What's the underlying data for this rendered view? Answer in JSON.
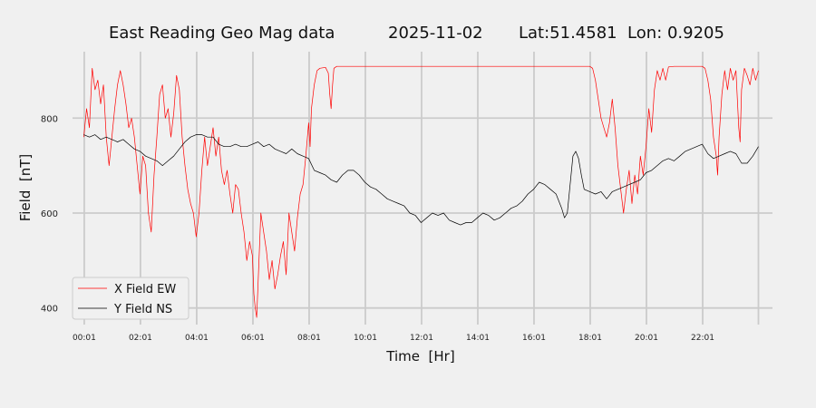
{
  "chart_data": {
    "type": "line",
    "title": {
      "name": "East Reading Geo Mag data",
      "date": "2025-11-02",
      "location": "Lat:51.4581  Lon: 0.9205"
    },
    "xlabel": "Time  [Hr]",
    "ylabel": "Field  [nT]",
    "x_unit": "hours",
    "xlim": [
      -0.4,
      24.5
    ],
    "ylim": [
      365,
      940
    ],
    "x_ticks": [
      {
        "value": 0.0167,
        "label": "00:01"
      },
      {
        "value": 2.0167,
        "label": "02:01"
      },
      {
        "value": 4.0167,
        "label": "04:01"
      },
      {
        "value": 6.0167,
        "label": "06:01"
      },
      {
        "value": 8.0167,
        "label": "08:01"
      },
      {
        "value": 10.0167,
        "label": "10:01"
      },
      {
        "value": 12.0167,
        "label": "12:01"
      },
      {
        "value": 14.0167,
        "label": "14:01"
      },
      {
        "value": 16.0167,
        "label": "16:01"
      },
      {
        "value": 18.0167,
        "label": "18:01"
      },
      {
        "value": 20.0167,
        "label": "20:01"
      },
      {
        "value": 22.0167,
        "label": "22:01"
      },
      {
        "value": 24.0,
        "label": ""
      }
    ],
    "y_ticks": [
      400,
      600,
      800
    ],
    "grid": true,
    "legend": "bottom-left",
    "series": [
      {
        "name": "X Field EW",
        "color": "#ff0000",
        "points": [
          [
            0.0,
            760
          ],
          [
            0.1,
            820
          ],
          [
            0.2,
            780
          ],
          [
            0.3,
            905
          ],
          [
            0.4,
            860
          ],
          [
            0.5,
            880
          ],
          [
            0.6,
            830
          ],
          [
            0.7,
            870
          ],
          [
            0.8,
            760
          ],
          [
            0.9,
            700
          ],
          [
            1.0,
            760
          ],
          [
            1.1,
            820
          ],
          [
            1.2,
            870
          ],
          [
            1.3,
            900
          ],
          [
            1.4,
            870
          ],
          [
            1.5,
            830
          ],
          [
            1.6,
            780
          ],
          [
            1.7,
            800
          ],
          [
            1.8,
            760
          ],
          [
            1.9,
            700
          ],
          [
            2.0,
            640
          ],
          [
            2.1,
            720
          ],
          [
            2.2,
            700
          ],
          [
            2.3,
            600
          ],
          [
            2.4,
            560
          ],
          [
            2.5,
            680
          ],
          [
            2.6,
            760
          ],
          [
            2.7,
            850
          ],
          [
            2.8,
            870
          ],
          [
            2.9,
            800
          ],
          [
            3.0,
            820
          ],
          [
            3.1,
            760
          ],
          [
            3.2,
            810
          ],
          [
            3.3,
            890
          ],
          [
            3.4,
            860
          ],
          [
            3.5,
            760
          ],
          [
            3.6,
            700
          ],
          [
            3.7,
            650
          ],
          [
            3.8,
            620
          ],
          [
            3.9,
            600
          ],
          [
            4.0,
            550
          ],
          [
            4.1,
            600
          ],
          [
            4.2,
            690
          ],
          [
            4.3,
            760
          ],
          [
            4.4,
            700
          ],
          [
            4.5,
            740
          ],
          [
            4.6,
            780
          ],
          [
            4.7,
            720
          ],
          [
            4.8,
            760
          ],
          [
            4.9,
            690
          ],
          [
            5.0,
            660
          ],
          [
            5.1,
            690
          ],
          [
            5.2,
            640
          ],
          [
            5.3,
            600
          ],
          [
            5.4,
            660
          ],
          [
            5.5,
            650
          ],
          [
            5.6,
            600
          ],
          [
            5.7,
            560
          ],
          [
            5.8,
            500
          ],
          [
            5.9,
            540
          ],
          [
            6.0,
            510
          ],
          [
            6.05,
            430
          ],
          [
            6.1,
            400
          ],
          [
            6.15,
            380
          ],
          [
            6.2,
            450
          ],
          [
            6.3,
            600
          ],
          [
            6.4,
            560
          ],
          [
            6.5,
            520
          ],
          [
            6.6,
            460
          ],
          [
            6.7,
            500
          ],
          [
            6.8,
            440
          ],
          [
            6.9,
            470
          ],
          [
            7.0,
            510
          ],
          [
            7.1,
            540
          ],
          [
            7.2,
            470
          ],
          [
            7.3,
            600
          ],
          [
            7.4,
            560
          ],
          [
            7.5,
            520
          ],
          [
            7.6,
            590
          ],
          [
            7.7,
            640
          ],
          [
            7.8,
            660
          ],
          [
            7.9,
            720
          ],
          [
            8.0,
            790
          ],
          [
            8.05,
            740
          ],
          [
            8.1,
            820
          ],
          [
            8.2,
            870
          ],
          [
            8.3,
            900
          ],
          [
            8.4,
            905
          ],
          [
            8.5,
            906
          ],
          [
            8.6,
            907
          ],
          [
            8.7,
            895
          ],
          [
            8.75,
            850
          ],
          [
            8.8,
            820
          ],
          [
            8.85,
            870
          ],
          [
            8.9,
            905
          ],
          [
            9.0,
            909
          ],
          [
            10.0,
            909
          ],
          [
            11.0,
            909
          ],
          [
            12.0,
            909
          ],
          [
            13.0,
            909
          ],
          [
            14.0,
            909
          ],
          [
            15.0,
            909
          ],
          [
            16.0,
            909
          ],
          [
            17.0,
            909
          ],
          [
            18.0,
            909
          ],
          [
            18.1,
            905
          ],
          [
            18.2,
            880
          ],
          [
            18.3,
            840
          ],
          [
            18.4,
            800
          ],
          [
            18.5,
            780
          ],
          [
            18.6,
            760
          ],
          [
            18.7,
            790
          ],
          [
            18.8,
            840
          ],
          [
            18.9,
            780
          ],
          [
            19.0,
            700
          ],
          [
            19.1,
            650
          ],
          [
            19.2,
            600
          ],
          [
            19.3,
            650
          ],
          [
            19.4,
            690
          ],
          [
            19.5,
            620
          ],
          [
            19.6,
            680
          ],
          [
            19.7,
            640
          ],
          [
            19.8,
            720
          ],
          [
            19.9,
            680
          ],
          [
            20.0,
            740
          ],
          [
            20.1,
            820
          ],
          [
            20.2,
            770
          ],
          [
            20.3,
            860
          ],
          [
            20.4,
            900
          ],
          [
            20.5,
            880
          ],
          [
            20.6,
            905
          ],
          [
            20.7,
            880
          ],
          [
            20.8,
            908
          ],
          [
            21.0,
            909
          ],
          [
            21.5,
            909
          ],
          [
            22.0,
            909
          ],
          [
            22.1,
            905
          ],
          [
            22.2,
            880
          ],
          [
            22.3,
            840
          ],
          [
            22.4,
            760
          ],
          [
            22.5,
            720
          ],
          [
            22.55,
            680
          ],
          [
            22.6,
            760
          ],
          [
            22.7,
            850
          ],
          [
            22.8,
            900
          ],
          [
            22.9,
            860
          ],
          [
            23.0,
            905
          ],
          [
            23.1,
            880
          ],
          [
            23.2,
            900
          ],
          [
            23.3,
            780
          ],
          [
            23.35,
            750
          ],
          [
            23.4,
            860
          ],
          [
            23.5,
            905
          ],
          [
            23.6,
            890
          ],
          [
            23.7,
            870
          ],
          [
            23.8,
            905
          ],
          [
            23.9,
            880
          ],
          [
            24.0,
            900
          ]
        ]
      },
      {
        "name": "Y Field NS",
        "color": "#000000",
        "points": [
          [
            0.0,
            765
          ],
          [
            0.2,
            760
          ],
          [
            0.4,
            765
          ],
          [
            0.6,
            755
          ],
          [
            0.8,
            760
          ],
          [
            1.0,
            755
          ],
          [
            1.2,
            750
          ],
          [
            1.4,
            755
          ],
          [
            1.6,
            745
          ],
          [
            1.8,
            735
          ],
          [
            2.0,
            730
          ],
          [
            2.2,
            720
          ],
          [
            2.4,
            715
          ],
          [
            2.6,
            710
          ],
          [
            2.8,
            700
          ],
          [
            3.0,
            710
          ],
          [
            3.2,
            720
          ],
          [
            3.4,
            735
          ],
          [
            3.6,
            750
          ],
          [
            3.8,
            760
          ],
          [
            4.0,
            765
          ],
          [
            4.2,
            765
          ],
          [
            4.4,
            760
          ],
          [
            4.6,
            760
          ],
          [
            4.8,
            745
          ],
          [
            5.0,
            740
          ],
          [
            5.2,
            740
          ],
          [
            5.4,
            745
          ],
          [
            5.6,
            740
          ],
          [
            5.8,
            740
          ],
          [
            6.0,
            745
          ],
          [
            6.2,
            750
          ],
          [
            6.4,
            740
          ],
          [
            6.6,
            745
          ],
          [
            6.8,
            735
          ],
          [
            7.0,
            730
          ],
          [
            7.2,
            725
          ],
          [
            7.4,
            735
          ],
          [
            7.6,
            725
          ],
          [
            7.8,
            720
          ],
          [
            8.0,
            715
          ],
          [
            8.2,
            690
          ],
          [
            8.4,
            685
          ],
          [
            8.6,
            680
          ],
          [
            8.8,
            670
          ],
          [
            9.0,
            665
          ],
          [
            9.2,
            680
          ],
          [
            9.4,
            690
          ],
          [
            9.6,
            690
          ],
          [
            9.8,
            680
          ],
          [
            10.0,
            665
          ],
          [
            10.2,
            655
          ],
          [
            10.4,
            650
          ],
          [
            10.6,
            640
          ],
          [
            10.8,
            630
          ],
          [
            11.0,
            625
          ],
          [
            11.2,
            620
          ],
          [
            11.4,
            615
          ],
          [
            11.6,
            600
          ],
          [
            11.8,
            595
          ],
          [
            12.0,
            580
          ],
          [
            12.2,
            590
          ],
          [
            12.4,
            600
          ],
          [
            12.6,
            595
          ],
          [
            12.8,
            600
          ],
          [
            13.0,
            585
          ],
          [
            13.2,
            580
          ],
          [
            13.4,
            575
          ],
          [
            13.6,
            580
          ],
          [
            13.8,
            580
          ],
          [
            14.0,
            590
          ],
          [
            14.2,
            600
          ],
          [
            14.4,
            595
          ],
          [
            14.6,
            585
          ],
          [
            14.8,
            590
          ],
          [
            15.0,
            600
          ],
          [
            15.2,
            610
          ],
          [
            15.4,
            615
          ],
          [
            15.6,
            625
          ],
          [
            15.8,
            640
          ],
          [
            16.0,
            650
          ],
          [
            16.2,
            665
          ],
          [
            16.4,
            660
          ],
          [
            16.6,
            650
          ],
          [
            16.8,
            640
          ],
          [
            17.0,
            610
          ],
          [
            17.1,
            590
          ],
          [
            17.2,
            600
          ],
          [
            17.3,
            660
          ],
          [
            17.4,
            720
          ],
          [
            17.5,
            730
          ],
          [
            17.6,
            715
          ],
          [
            17.7,
            680
          ],
          [
            17.8,
            650
          ],
          [
            18.0,
            645
          ],
          [
            18.2,
            640
          ],
          [
            18.4,
            645
          ],
          [
            18.6,
            630
          ],
          [
            18.8,
            645
          ],
          [
            19.0,
            650
          ],
          [
            19.2,
            655
          ],
          [
            19.4,
            660
          ],
          [
            19.6,
            665
          ],
          [
            19.8,
            670
          ],
          [
            20.0,
            685
          ],
          [
            20.2,
            690
          ],
          [
            20.4,
            700
          ],
          [
            20.6,
            710
          ],
          [
            20.8,
            715
          ],
          [
            21.0,
            710
          ],
          [
            21.2,
            720
          ],
          [
            21.4,
            730
          ],
          [
            21.6,
            735
          ],
          [
            21.8,
            740
          ],
          [
            22.0,
            745
          ],
          [
            22.2,
            725
          ],
          [
            22.4,
            715
          ],
          [
            22.6,
            720
          ],
          [
            22.8,
            725
          ],
          [
            23.0,
            730
          ],
          [
            23.2,
            725
          ],
          [
            23.4,
            705
          ],
          [
            23.6,
            705
          ],
          [
            23.8,
            720
          ],
          [
            24.0,
            740
          ]
        ]
      }
    ]
  }
}
